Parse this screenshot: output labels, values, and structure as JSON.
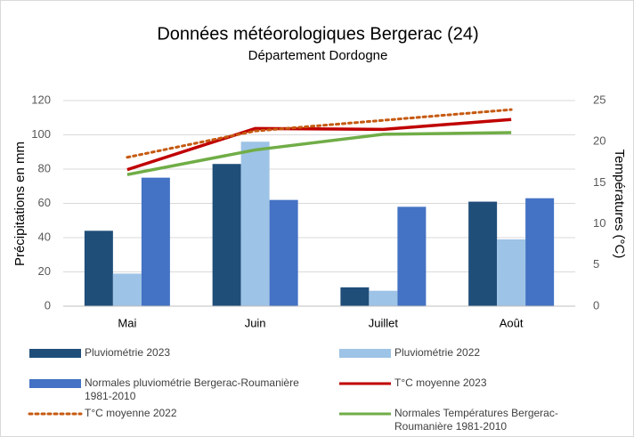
{
  "chart_data": {
    "type": "bar_line",
    "title": "Données météorologiques Bergerac (24)",
    "subtitle": "Département Dordogne",
    "y_label": "Précipitations en mm",
    "y2_label": "Températures (°C)",
    "categories": [
      "Mai",
      "Juin",
      "Juillet",
      "Août"
    ],
    "ylim": [
      0,
      120
    ],
    "yticks": [
      0,
      20,
      40,
      60,
      80,
      100,
      120
    ],
    "y2lim": [
      0,
      25
    ],
    "y2ticks": [
      0,
      5,
      10,
      15,
      20,
      25
    ],
    "grid": true,
    "series": [
      {
        "name": "Pluviométrie 2023",
        "kind": "bar",
        "color": "#1f4e79",
        "values": [
          44,
          83,
          11,
          61
        ]
      },
      {
        "name": "Pluviométrie 2022",
        "kind": "bar",
        "color": "#9dc3e6",
        "values": [
          19,
          96,
          9,
          39
        ]
      },
      {
        "name": "Normales pluviométrie Bergerac-Roumanière 1981-2010",
        "kind": "bar",
        "color": "#4472c4",
        "values": [
          75,
          62,
          58,
          63
        ]
      },
      {
        "name": "T°C moyenne 2023",
        "kind": "line",
        "axis": "y2",
        "color": "#c00000",
        "values": [
          16.6,
          21.6,
          21.5,
          22.7
        ]
      },
      {
        "name": "T°C moyenne 2022",
        "kind": "line",
        "axis": "y2",
        "color": "#c55a11",
        "style": "dotted",
        "values": [
          18.1,
          21.3,
          22.6,
          23.9
        ]
      },
      {
        "name": "Normales Températures Bergerac-Roumanière 1981-2010",
        "kind": "line",
        "axis": "y2",
        "color": "#70ad47",
        "values": [
          16.0,
          19.0,
          20.9,
          21.1
        ]
      }
    ]
  }
}
